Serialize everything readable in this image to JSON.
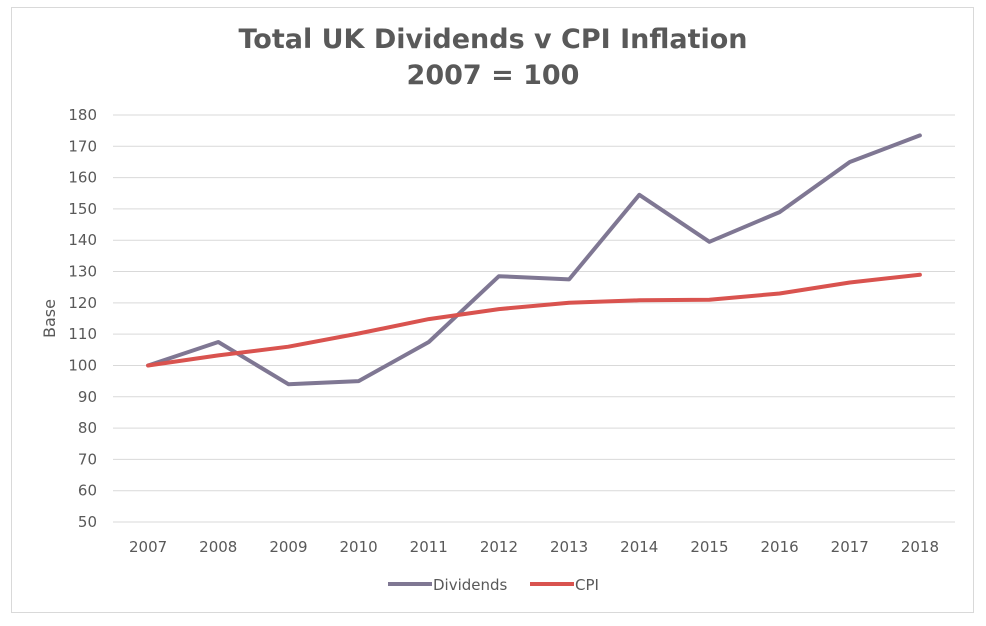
{
  "chart_data": {
    "type": "line",
    "title": "Total UK Dividends v CPI Inflation",
    "subtitle": "2007 = 100",
    "xlabel": "",
    "ylabel": "Base",
    "ylim": [
      50,
      180
    ],
    "yticks": [
      50,
      60,
      70,
      80,
      90,
      100,
      110,
      120,
      130,
      140,
      150,
      160,
      170,
      180
    ],
    "categories": [
      "2007",
      "2008",
      "2009",
      "2010",
      "2011",
      "2012",
      "2013",
      "2014",
      "2015",
      "2016",
      "2017",
      "2018"
    ],
    "series": [
      {
        "name": "Dividends",
        "color": "#7f7793",
        "values": [
          100,
          107.5,
          94,
          95,
          107.5,
          128.5,
          127.5,
          154.5,
          139.5,
          149,
          165,
          173.5
        ]
      },
      {
        "name": "CPI",
        "color": "#d9534f",
        "values": [
          100,
          103.2,
          106,
          110.2,
          114.8,
          118,
          120,
          120.8,
          121,
          123,
          126.5,
          129
        ]
      }
    ],
    "grid": true,
    "legend": "bottom"
  }
}
